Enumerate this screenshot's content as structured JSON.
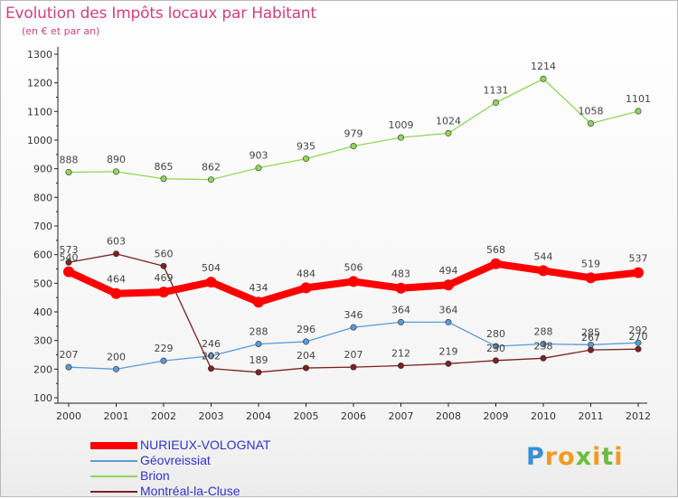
{
  "header": {
    "title": "Evolution des Impôts locaux par Habitant",
    "subtitle": "(en € et par an)"
  },
  "chart_data": {
    "type": "line",
    "title": "Evolution des Impôts locaux par Habitant",
    "subtitle": "(en € et par an)",
    "x": [
      2000,
      2001,
      2002,
      2003,
      2004,
      2005,
      2006,
      2007,
      2008,
      2009,
      2010,
      2011,
      2012
    ],
    "ylim": [
      100,
      1300
    ],
    "yticks": [
      100,
      200,
      300,
      400,
      500,
      600,
      700,
      800,
      900,
      1000,
      1100,
      1200,
      1300
    ],
    "grid": false,
    "legend_position": "bottom-left",
    "series": [
      {
        "name": "NURIEUX-VOLOGNAT",
        "color": "#ff0000",
        "values": [
          540,
          464,
          469,
          504,
          434,
          484,
          506,
          483,
          494,
          568,
          544,
          519,
          537
        ]
      },
      {
        "name": "Géovreissiat",
        "color": "#5b9bd5",
        "values": [
          207,
          200,
          229,
          246,
          288,
          296,
          346,
          364,
          364,
          280,
          288,
          285,
          292
        ]
      },
      {
        "name": "Brion",
        "color": "#8fd65a",
        "values": [
          888,
          890,
          865,
          862,
          903,
          935,
          979,
          1009,
          1024,
          1131,
          1214,
          1058,
          1101
        ]
      },
      {
        "name": "Montréal-la-Cluse",
        "color": "#7b2222",
        "values": [
          573,
          603,
          560,
          202,
          189,
          204,
          207,
          212,
          219,
          230,
          238,
          267,
          270
        ]
      }
    ]
  },
  "logo": {
    "letters": [
      "P",
      "r",
      "o",
      "x",
      "i",
      "t",
      "i"
    ],
    "colors": [
      "#3a8fd6",
      "#f29a1f",
      "#f29a1f",
      "#6cbd3c",
      "#f29a1f",
      "#6cbd3c",
      "#f29a1f"
    ]
  }
}
